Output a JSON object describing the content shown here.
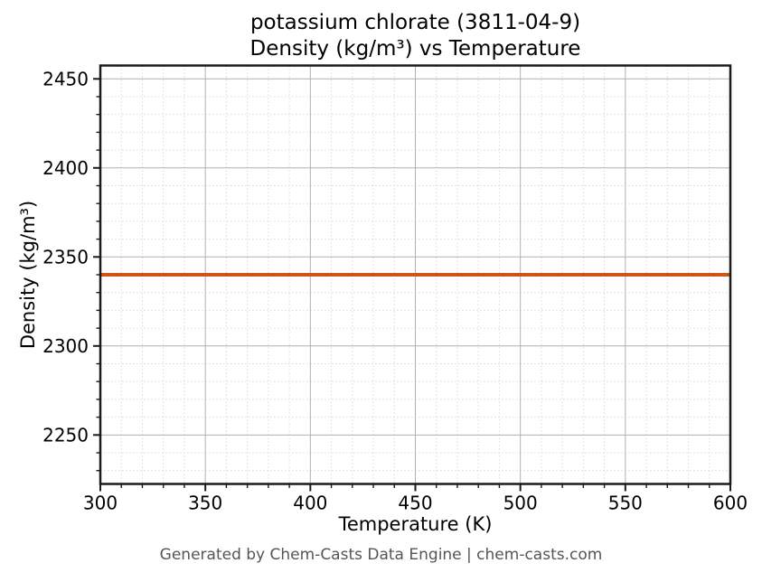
{
  "title": {
    "line1": "potassium chlorate (3811-04-9)",
    "line2": "Density (kg/m³) vs Temperature"
  },
  "footer": "Generated by Chem-Casts Data Engine | chem-casts.com",
  "colors": {
    "line": "#d2521e",
    "grid_major": "#b0b0b0",
    "grid_minor": "#d9d9d9",
    "spine": "#1a1a1a",
    "tick_label": "#000000",
    "footer_text": "#555555",
    "background": "#ffffff"
  },
  "chart_data": {
    "type": "line",
    "title": "potassium chlorate (3811-04-9)\nDensity (kg/m³) vs Temperature",
    "xlabel": "Temperature (K)",
    "ylabel": "Density (kg/m³)",
    "xlim": [
      300,
      600
    ],
    "ylim": [
      2222.5,
      2457.5
    ],
    "x_ticks": [
      300,
      350,
      400,
      450,
      500,
      550,
      600
    ],
    "y_ticks": [
      2250,
      2300,
      2350,
      2400,
      2450
    ],
    "minor_tick_step_x": 10,
    "minor_tick_step_y": 10,
    "grid": "major solid + minor dotted",
    "legend": "none",
    "series": [
      {
        "name": "Density",
        "x": [
          300,
          350,
          400,
          450,
          500,
          550,
          600
        ],
        "values": [
          2340,
          2340,
          2340,
          2340,
          2340,
          2340,
          2340
        ],
        "color": "#d2521e",
        "line_width": 4
      }
    ]
  }
}
